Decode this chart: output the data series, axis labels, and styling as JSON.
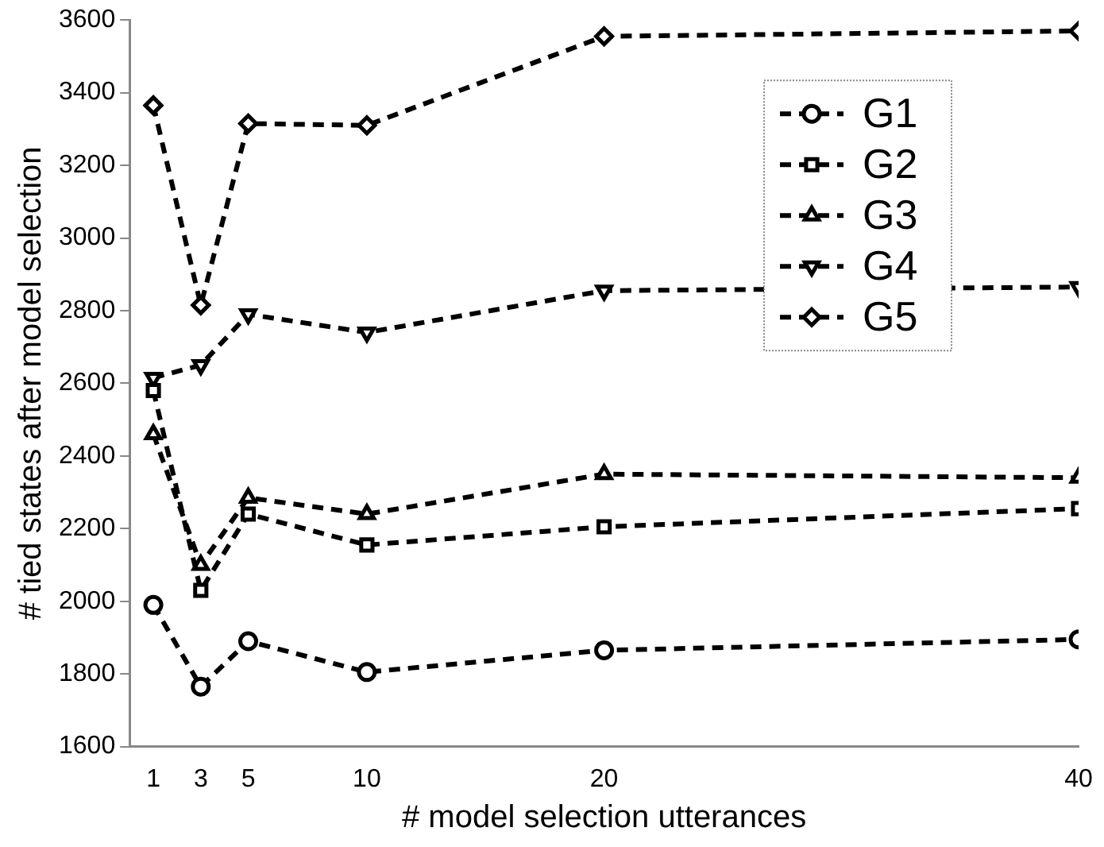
{
  "chart_data": {
    "type": "line",
    "xlabel": "# model selection utterances",
    "ylabel": "# tied states after model selection",
    "x": [
      1,
      3,
      5,
      10,
      20,
      40
    ],
    "xlim": [
      0,
      40
    ],
    "xticks": [
      1,
      3,
      5,
      10,
      20,
      40
    ],
    "ylim": [
      1600,
      3600
    ],
    "yticks": [
      1600,
      1800,
      2000,
      2200,
      2400,
      2600,
      2800,
      3000,
      3200,
      3400,
      3600
    ],
    "grid": false,
    "legend": "top right",
    "line_style": "dashed",
    "series": [
      {
        "name": "G1",
        "color": "#000000",
        "marker": "circle",
        "values": [
          1990,
          1765,
          1890,
          1805,
          1865,
          1895
        ]
      },
      {
        "name": "G2",
        "color": "#000000",
        "marker": "square",
        "values": [
          2580,
          2030,
          2240,
          2155,
          2205,
          2255
        ]
      },
      {
        "name": "G3",
        "color": "#000000",
        "marker": "triangle",
        "values": [
          2460,
          2100,
          2285,
          2240,
          2350,
          2340
        ]
      },
      {
        "name": "G4",
        "color": "#000000",
        "marker": "triangle-down",
        "values": [
          2615,
          2650,
          2790,
          2740,
          2855,
          2865
        ]
      },
      {
        "name": "G5",
        "color": "#000000",
        "marker": "diamond",
        "values": [
          3365,
          2815,
          3315,
          3310,
          3555,
          3570
        ]
      }
    ]
  }
}
